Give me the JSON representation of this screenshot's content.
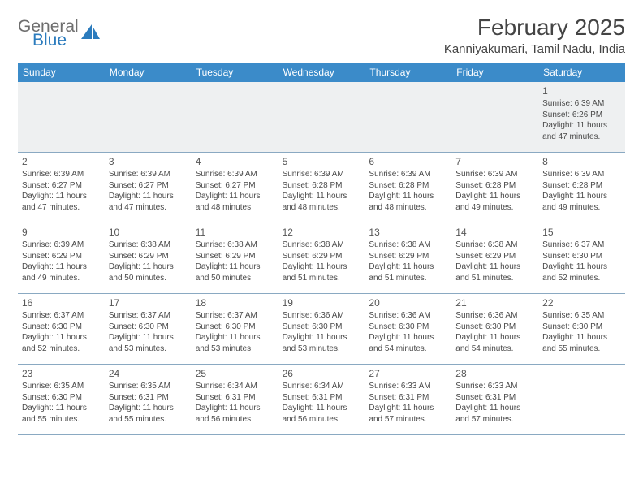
{
  "brand": {
    "name_part1": "General",
    "name_part2": "Blue",
    "logo_color": "#2b7bbd",
    "logo_gray": "#6e6e6e"
  },
  "title": "February 2025",
  "location": "Kanniyakumari, Tamil Nadu, India",
  "colors": {
    "header_bg": "#3b8bc9",
    "header_text": "#ffffff",
    "row_divider": "#8aa9c2",
    "first_row_bg": "#eef0f1",
    "text": "#4a4a4a"
  },
  "weekdays": [
    "Sunday",
    "Monday",
    "Tuesday",
    "Wednesday",
    "Thursday",
    "Friday",
    "Saturday"
  ],
  "weeks": [
    [
      null,
      null,
      null,
      null,
      null,
      null,
      {
        "d": "1",
        "sr": "Sunrise: 6:39 AM",
        "ss": "Sunset: 6:26 PM",
        "dl1": "Daylight: 11 hours",
        "dl2": "and 47 minutes."
      }
    ],
    [
      {
        "d": "2",
        "sr": "Sunrise: 6:39 AM",
        "ss": "Sunset: 6:27 PM",
        "dl1": "Daylight: 11 hours",
        "dl2": "and 47 minutes."
      },
      {
        "d": "3",
        "sr": "Sunrise: 6:39 AM",
        "ss": "Sunset: 6:27 PM",
        "dl1": "Daylight: 11 hours",
        "dl2": "and 47 minutes."
      },
      {
        "d": "4",
        "sr": "Sunrise: 6:39 AM",
        "ss": "Sunset: 6:27 PM",
        "dl1": "Daylight: 11 hours",
        "dl2": "and 48 minutes."
      },
      {
        "d": "5",
        "sr": "Sunrise: 6:39 AM",
        "ss": "Sunset: 6:28 PM",
        "dl1": "Daylight: 11 hours",
        "dl2": "and 48 minutes."
      },
      {
        "d": "6",
        "sr": "Sunrise: 6:39 AM",
        "ss": "Sunset: 6:28 PM",
        "dl1": "Daylight: 11 hours",
        "dl2": "and 48 minutes."
      },
      {
        "d": "7",
        "sr": "Sunrise: 6:39 AM",
        "ss": "Sunset: 6:28 PM",
        "dl1": "Daylight: 11 hours",
        "dl2": "and 49 minutes."
      },
      {
        "d": "8",
        "sr": "Sunrise: 6:39 AM",
        "ss": "Sunset: 6:28 PM",
        "dl1": "Daylight: 11 hours",
        "dl2": "and 49 minutes."
      }
    ],
    [
      {
        "d": "9",
        "sr": "Sunrise: 6:39 AM",
        "ss": "Sunset: 6:29 PM",
        "dl1": "Daylight: 11 hours",
        "dl2": "and 49 minutes."
      },
      {
        "d": "10",
        "sr": "Sunrise: 6:38 AM",
        "ss": "Sunset: 6:29 PM",
        "dl1": "Daylight: 11 hours",
        "dl2": "and 50 minutes."
      },
      {
        "d": "11",
        "sr": "Sunrise: 6:38 AM",
        "ss": "Sunset: 6:29 PM",
        "dl1": "Daylight: 11 hours",
        "dl2": "and 50 minutes."
      },
      {
        "d": "12",
        "sr": "Sunrise: 6:38 AM",
        "ss": "Sunset: 6:29 PM",
        "dl1": "Daylight: 11 hours",
        "dl2": "and 51 minutes."
      },
      {
        "d": "13",
        "sr": "Sunrise: 6:38 AM",
        "ss": "Sunset: 6:29 PM",
        "dl1": "Daylight: 11 hours",
        "dl2": "and 51 minutes."
      },
      {
        "d": "14",
        "sr": "Sunrise: 6:38 AM",
        "ss": "Sunset: 6:29 PM",
        "dl1": "Daylight: 11 hours",
        "dl2": "and 51 minutes."
      },
      {
        "d": "15",
        "sr": "Sunrise: 6:37 AM",
        "ss": "Sunset: 6:30 PM",
        "dl1": "Daylight: 11 hours",
        "dl2": "and 52 minutes."
      }
    ],
    [
      {
        "d": "16",
        "sr": "Sunrise: 6:37 AM",
        "ss": "Sunset: 6:30 PM",
        "dl1": "Daylight: 11 hours",
        "dl2": "and 52 minutes."
      },
      {
        "d": "17",
        "sr": "Sunrise: 6:37 AM",
        "ss": "Sunset: 6:30 PM",
        "dl1": "Daylight: 11 hours",
        "dl2": "and 53 minutes."
      },
      {
        "d": "18",
        "sr": "Sunrise: 6:37 AM",
        "ss": "Sunset: 6:30 PM",
        "dl1": "Daylight: 11 hours",
        "dl2": "and 53 minutes."
      },
      {
        "d": "19",
        "sr": "Sunrise: 6:36 AM",
        "ss": "Sunset: 6:30 PM",
        "dl1": "Daylight: 11 hours",
        "dl2": "and 53 minutes."
      },
      {
        "d": "20",
        "sr": "Sunrise: 6:36 AM",
        "ss": "Sunset: 6:30 PM",
        "dl1": "Daylight: 11 hours",
        "dl2": "and 54 minutes."
      },
      {
        "d": "21",
        "sr": "Sunrise: 6:36 AM",
        "ss": "Sunset: 6:30 PM",
        "dl1": "Daylight: 11 hours",
        "dl2": "and 54 minutes."
      },
      {
        "d": "22",
        "sr": "Sunrise: 6:35 AM",
        "ss": "Sunset: 6:30 PM",
        "dl1": "Daylight: 11 hours",
        "dl2": "and 55 minutes."
      }
    ],
    [
      {
        "d": "23",
        "sr": "Sunrise: 6:35 AM",
        "ss": "Sunset: 6:30 PM",
        "dl1": "Daylight: 11 hours",
        "dl2": "and 55 minutes."
      },
      {
        "d": "24",
        "sr": "Sunrise: 6:35 AM",
        "ss": "Sunset: 6:31 PM",
        "dl1": "Daylight: 11 hours",
        "dl2": "and 55 minutes."
      },
      {
        "d": "25",
        "sr": "Sunrise: 6:34 AM",
        "ss": "Sunset: 6:31 PM",
        "dl1": "Daylight: 11 hours",
        "dl2": "and 56 minutes."
      },
      {
        "d": "26",
        "sr": "Sunrise: 6:34 AM",
        "ss": "Sunset: 6:31 PM",
        "dl1": "Daylight: 11 hours",
        "dl2": "and 56 minutes."
      },
      {
        "d": "27",
        "sr": "Sunrise: 6:33 AM",
        "ss": "Sunset: 6:31 PM",
        "dl1": "Daylight: 11 hours",
        "dl2": "and 57 minutes."
      },
      {
        "d": "28",
        "sr": "Sunrise: 6:33 AM",
        "ss": "Sunset: 6:31 PM",
        "dl1": "Daylight: 11 hours",
        "dl2": "and 57 minutes."
      },
      null
    ]
  ]
}
